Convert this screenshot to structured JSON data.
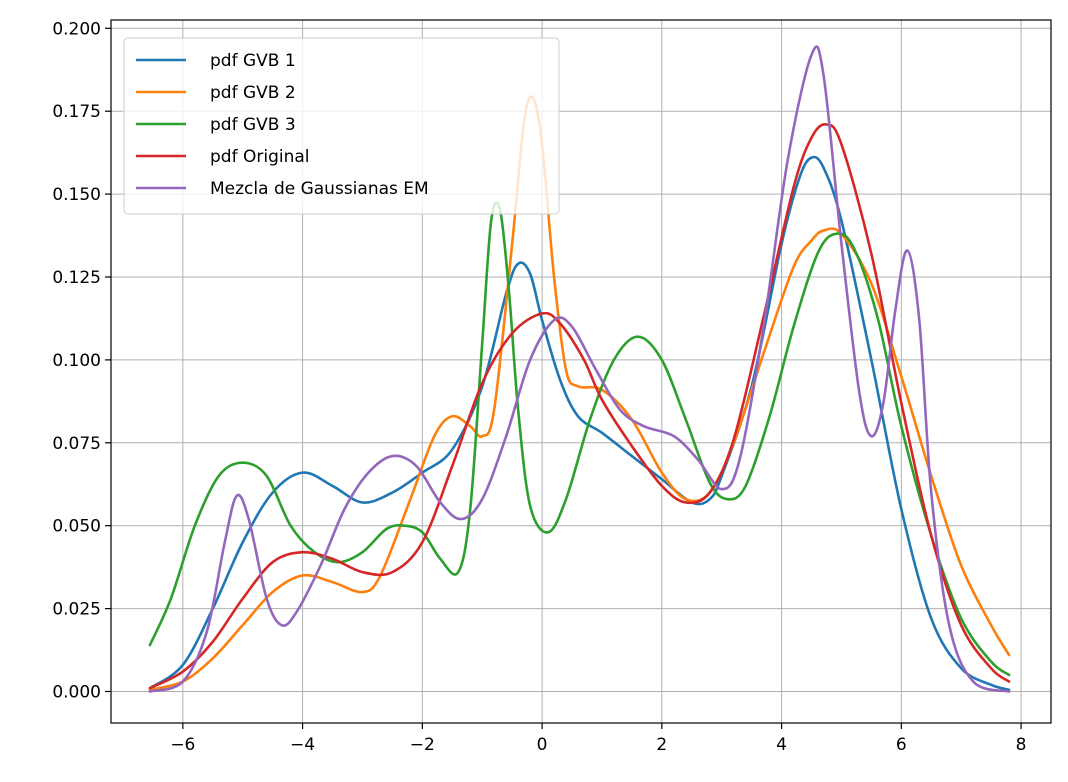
{
  "chart_data": {
    "type": "line",
    "title": "",
    "xlabel": "",
    "ylabel": "",
    "xlim": [
      -7.2,
      8.5
    ],
    "ylim": [
      -0.0095,
      0.2025
    ],
    "xticks": [
      -6,
      -4,
      -2,
      0,
      2,
      4,
      6,
      8
    ],
    "xtick_labels": [
      "−6",
      "−4",
      "−2",
      "0",
      "2",
      "4",
      "6",
      "8"
    ],
    "yticks": [
      0.0,
      0.025,
      0.05,
      0.075,
      0.1,
      0.125,
      0.15,
      0.175,
      0.2
    ],
    "ytick_labels": [
      "0.000",
      "0.025",
      "0.050",
      "0.075",
      "0.100",
      "0.125",
      "0.150",
      "0.175",
      "0.200"
    ],
    "grid": true,
    "legend_position": "top-left",
    "series": [
      {
        "name": "pdf GVB 1",
        "color": "#1f77b4",
        "points": [
          [
            -6.55,
            0.001
          ],
          [
            -6.0,
            0.008
          ],
          [
            -5.5,
            0.025
          ],
          [
            -5.0,
            0.045
          ],
          [
            -4.5,
            0.06
          ],
          [
            -4.0,
            0.066
          ],
          [
            -3.5,
            0.062
          ],
          [
            -3.0,
            0.057
          ],
          [
            -2.5,
            0.06
          ],
          [
            -2.0,
            0.066
          ],
          [
            -1.5,
            0.073
          ],
          [
            -1.0,
            0.092
          ],
          [
            -0.6,
            0.12
          ],
          [
            -0.4,
            0.129
          ],
          [
            -0.2,
            0.126
          ],
          [
            0.0,
            0.112
          ],
          [
            0.3,
            0.094
          ],
          [
            0.6,
            0.083
          ],
          [
            1.0,
            0.078
          ],
          [
            1.5,
            0.071
          ],
          [
            2.0,
            0.064
          ],
          [
            2.5,
            0.057
          ],
          [
            2.8,
            0.058
          ],
          [
            3.0,
            0.065
          ],
          [
            3.5,
            0.092
          ],
          [
            4.0,
            0.135
          ],
          [
            4.3,
            0.155
          ],
          [
            4.5,
            0.161
          ],
          [
            4.7,
            0.158
          ],
          [
            5.0,
            0.142
          ],
          [
            5.5,
            0.1
          ],
          [
            6.0,
            0.055
          ],
          [
            6.5,
            0.022
          ],
          [
            7.0,
            0.007
          ],
          [
            7.5,
            0.002
          ],
          [
            7.8,
            0.0005
          ]
        ]
      },
      {
        "name": "pdf GVB 2",
        "color": "#ff7f0e",
        "points": [
          [
            -6.55,
            0.0005
          ],
          [
            -6.0,
            0.003
          ],
          [
            -5.5,
            0.01
          ],
          [
            -5.0,
            0.02
          ],
          [
            -4.5,
            0.03
          ],
          [
            -4.0,
            0.035
          ],
          [
            -3.5,
            0.033
          ],
          [
            -3.0,
            0.03
          ],
          [
            -2.7,
            0.035
          ],
          [
            -2.2,
            0.058
          ],
          [
            -1.8,
            0.077
          ],
          [
            -1.5,
            0.083
          ],
          [
            -1.2,
            0.08
          ],
          [
            -1.0,
            0.077
          ],
          [
            -0.8,
            0.085
          ],
          [
            -0.5,
            0.135
          ],
          [
            -0.3,
            0.172
          ],
          [
            -0.15,
            0.179
          ],
          [
            0.0,
            0.165
          ],
          [
            0.2,
            0.125
          ],
          [
            0.4,
            0.097
          ],
          [
            0.6,
            0.092
          ],
          [
            1.0,
            0.091
          ],
          [
            1.5,
            0.082
          ],
          [
            2.0,
            0.066
          ],
          [
            2.4,
            0.058
          ],
          [
            2.8,
            0.06
          ],
          [
            3.2,
            0.075
          ],
          [
            3.7,
            0.102
          ],
          [
            4.2,
            0.128
          ],
          [
            4.5,
            0.136
          ],
          [
            4.7,
            0.139
          ],
          [
            5.0,
            0.138
          ],
          [
            5.5,
            0.123
          ],
          [
            6.0,
            0.095
          ],
          [
            6.5,
            0.065
          ],
          [
            7.0,
            0.038
          ],
          [
            7.5,
            0.02
          ],
          [
            7.8,
            0.011
          ]
        ]
      },
      {
        "name": "pdf GVB 3",
        "color": "#2ca02c",
        "points": [
          [
            -6.55,
            0.014
          ],
          [
            -6.2,
            0.028
          ],
          [
            -5.8,
            0.05
          ],
          [
            -5.4,
            0.065
          ],
          [
            -5.0,
            0.069
          ],
          [
            -4.6,
            0.065
          ],
          [
            -4.2,
            0.05
          ],
          [
            -3.8,
            0.042
          ],
          [
            -3.4,
            0.039
          ],
          [
            -3.0,
            0.042
          ],
          [
            -2.6,
            0.049
          ],
          [
            -2.3,
            0.05
          ],
          [
            -2.0,
            0.048
          ],
          [
            -1.7,
            0.04
          ],
          [
            -1.4,
            0.036
          ],
          [
            -1.2,
            0.055
          ],
          [
            -1.0,
            0.105
          ],
          [
            -0.85,
            0.142
          ],
          [
            -0.7,
            0.145
          ],
          [
            -0.55,
            0.12
          ],
          [
            -0.4,
            0.085
          ],
          [
            -0.2,
            0.056
          ],
          [
            0.1,
            0.048
          ],
          [
            0.4,
            0.058
          ],
          [
            0.8,
            0.082
          ],
          [
            1.2,
            0.1
          ],
          [
            1.6,
            0.107
          ],
          [
            2.0,
            0.1
          ],
          [
            2.4,
            0.082
          ],
          [
            2.8,
            0.063
          ],
          [
            3.1,
            0.058
          ],
          [
            3.4,
            0.062
          ],
          [
            3.8,
            0.083
          ],
          [
            4.2,
            0.11
          ],
          [
            4.6,
            0.132
          ],
          [
            4.9,
            0.138
          ],
          [
            5.2,
            0.134
          ],
          [
            5.6,
            0.113
          ],
          [
            6.0,
            0.08
          ],
          [
            6.5,
            0.047
          ],
          [
            7.0,
            0.022
          ],
          [
            7.5,
            0.009
          ],
          [
            7.8,
            0.005
          ]
        ]
      },
      {
        "name": "pdf Original",
        "color": "#d62728",
        "points": [
          [
            -6.55,
            0.001
          ],
          [
            -6.0,
            0.006
          ],
          [
            -5.5,
            0.015
          ],
          [
            -5.0,
            0.028
          ],
          [
            -4.5,
            0.039
          ],
          [
            -4.0,
            0.042
          ],
          [
            -3.5,
            0.04
          ],
          [
            -3.0,
            0.036
          ],
          [
            -2.5,
            0.036
          ],
          [
            -2.0,
            0.045
          ],
          [
            -1.5,
            0.068
          ],
          [
            -1.0,
            0.093
          ],
          [
            -0.5,
            0.108
          ],
          [
            0.0,
            0.114
          ],
          [
            0.3,
            0.111
          ],
          [
            0.7,
            0.1
          ],
          [
            1.0,
            0.088
          ],
          [
            1.5,
            0.074
          ],
          [
            2.0,
            0.062
          ],
          [
            2.4,
            0.057
          ],
          [
            2.8,
            0.06
          ],
          [
            3.2,
            0.076
          ],
          [
            3.7,
            0.113
          ],
          [
            4.2,
            0.152
          ],
          [
            4.5,
            0.167
          ],
          [
            4.75,
            0.171
          ],
          [
            5.0,
            0.165
          ],
          [
            5.5,
            0.132
          ],
          [
            6.0,
            0.087
          ],
          [
            6.5,
            0.047
          ],
          [
            7.0,
            0.02
          ],
          [
            7.5,
            0.007
          ],
          [
            7.8,
            0.003
          ]
        ]
      },
      {
        "name": "Mezcla de Gaussianas EM",
        "color": "#9467bd",
        "points": [
          [
            -6.55,
            0.0
          ],
          [
            -6.0,
            0.003
          ],
          [
            -5.6,
            0.018
          ],
          [
            -5.3,
            0.045
          ],
          [
            -5.1,
            0.059
          ],
          [
            -4.9,
            0.052
          ],
          [
            -4.6,
            0.028
          ],
          [
            -4.35,
            0.02
          ],
          [
            -4.1,
            0.024
          ],
          [
            -3.7,
            0.038
          ],
          [
            -3.3,
            0.055
          ],
          [
            -2.9,
            0.066
          ],
          [
            -2.5,
            0.071
          ],
          [
            -2.1,
            0.068
          ],
          [
            -1.7,
            0.057
          ],
          [
            -1.35,
            0.052
          ],
          [
            -1.0,
            0.058
          ],
          [
            -0.6,
            0.077
          ],
          [
            -0.2,
            0.1
          ],
          [
            0.2,
            0.112
          ],
          [
            0.5,
            0.11
          ],
          [
            0.9,
            0.097
          ],
          [
            1.3,
            0.085
          ],
          [
            1.7,
            0.08
          ],
          [
            2.2,
            0.077
          ],
          [
            2.6,
            0.07
          ],
          [
            3.0,
            0.061
          ],
          [
            3.3,
            0.07
          ],
          [
            3.7,
            0.11
          ],
          [
            4.1,
            0.16
          ],
          [
            4.5,
            0.192
          ],
          [
            4.7,
            0.186
          ],
          [
            5.0,
            0.135
          ],
          [
            5.3,
            0.09
          ],
          [
            5.5,
            0.077
          ],
          [
            5.7,
            0.087
          ],
          [
            5.9,
            0.115
          ],
          [
            6.1,
            0.133
          ],
          [
            6.3,
            0.112
          ],
          [
            6.5,
            0.06
          ],
          [
            6.8,
            0.02
          ],
          [
            7.2,
            0.003
          ],
          [
            7.8,
            0.0
          ]
        ]
      }
    ]
  }
}
